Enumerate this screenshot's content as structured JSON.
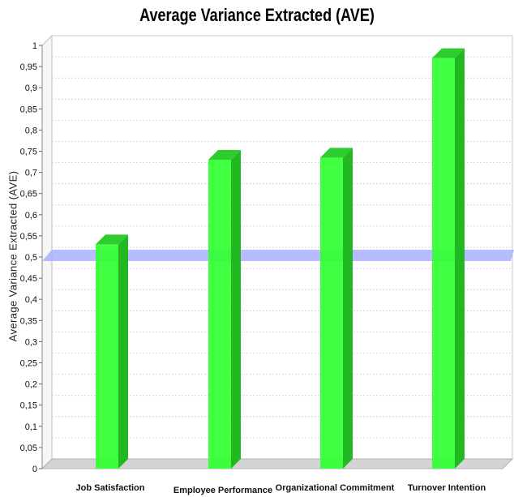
{
  "chart_data": {
    "type": "bar",
    "title": "Average Variance Extracted (AVE)",
    "xlabel": "",
    "ylabel": "Average Variance Extracted (AVE)",
    "categories": [
      "Job Satisfaction",
      "Employee Performance",
      "Organizational Commitment",
      "Turnover Intention"
    ],
    "series": [
      {
        "values": [
          0.53,
          0.73,
          0.735,
          0.97
        ]
      }
    ],
    "threshold_line": 0.5,
    "ylim": [
      0,
      1
    ],
    "yticks": [
      "0",
      "0,05",
      "0,1",
      "0,15",
      "0,2",
      "0,25",
      "0,3",
      "0,35",
      "0,4",
      "0,45",
      "0,5",
      "0,55",
      "0,6",
      "0,65",
      "0,7",
      "0,75",
      "0,8",
      "0,85",
      "0,9",
      "0,95",
      "1"
    ],
    "grid": true,
    "legend": "none",
    "colors": {
      "bar": "#33ff33",
      "bar_side": "#22b822",
      "bar_top": "#2ecc2e",
      "threshold": "#aab0ff"
    }
  }
}
